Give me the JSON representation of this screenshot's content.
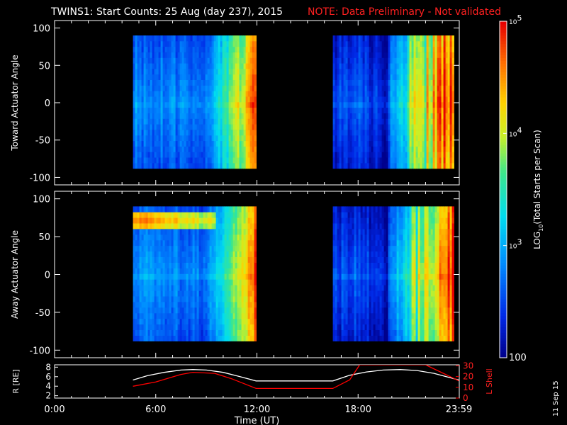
{
  "header": {
    "title": "TWINS1: Start Counts: 25 Aug (day 237), 2015",
    "note": "NOTE: Data Preliminary - Not validated",
    "note_color": "#ff0000"
  },
  "footer": {
    "date_stamp": "11 Sep 15"
  },
  "chart_data": [
    {
      "type": "heatmap",
      "panel": "toward",
      "ylabel": "Toward Actuator Angle",
      "ylim": [
        -110,
        110
      ],
      "yticks": [
        "100",
        "50",
        "0",
        "-50",
        "-100"
      ],
      "ytick_values": [
        100,
        50,
        0,
        -50,
        -100
      ],
      "xlim": [
        0,
        24
      ],
      "data_segments_hours": [
        [
          4.65,
          11.95
        ],
        [
          16.5,
          23.7
        ]
      ],
      "angle_range": [
        -88,
        90
      ]
    },
    {
      "type": "heatmap",
      "panel": "away",
      "ylabel": "Away Actuator Angle",
      "ylim": [
        -110,
        110
      ],
      "yticks": [
        "100",
        "50",
        "0",
        "-50",
        "-100"
      ],
      "ytick_values": [
        100,
        50,
        0,
        -50,
        -100
      ],
      "xlim": [
        0,
        24
      ],
      "data_segments_hours": [
        [
          4.65,
          11.95
        ],
        [
          16.5,
          23.7
        ]
      ],
      "angle_range": [
        -88,
        90
      ],
      "bright_band_angle": 72
    },
    {
      "type": "line",
      "panel": "orbit",
      "ylabel_left": "R [RE]",
      "ylabel_right": "L Shell",
      "yticks_left": [
        "8",
        "6",
        "4",
        "2"
      ],
      "yticks_left_values": [
        8,
        6,
        4,
        2
      ],
      "ylim_left": [
        1.5,
        8.5
      ],
      "yticks_right": [
        "30",
        "20",
        "10",
        "0"
      ],
      "yticks_right_values": [
        30,
        20,
        10,
        0
      ],
      "ylim_right": [
        0,
        31
      ],
      "xlim": [
        0,
        24
      ],
      "xlabel": "Time (UT)",
      "xticks": [
        "0:00",
        "6:00",
        "12:00",
        "18:00",
        "23:59"
      ],
      "xtick_values": [
        0,
        6,
        12,
        18,
        23.98
      ],
      "series": [
        {
          "color": "#ffffff",
          "axis": "left",
          "x": [
            4.65,
            5.5,
            6.5,
            7.5,
            8.2,
            9.0,
            10.0,
            11.0,
            11.95,
            16.5,
            17.5,
            18.5,
            19.5,
            20.5,
            21.5,
            22.5,
            23.98
          ],
          "y": [
            5.3,
            6.2,
            6.9,
            7.4,
            7.5,
            7.4,
            6.9,
            6.0,
            5.1,
            5.1,
            6.3,
            7.0,
            7.4,
            7.5,
            7.3,
            6.7,
            5.3
          ]
        },
        {
          "color": "#ff0000",
          "axis": "right",
          "x": [
            4.65,
            6.0,
            7.5,
            8.2,
            9.5,
            10.5,
            11.95,
            16.5,
            17.5,
            18.1,
            22.0,
            23.98
          ],
          "y": [
            11,
            15,
            22,
            24,
            23,
            18,
            9,
            9,
            17,
            31,
            31,
            16
          ]
        }
      ]
    }
  ],
  "colorbar": {
    "label": "LOG10(Total Starts per Scan)",
    "label_prefix": "LOG",
    "label_sub": "10",
    "label_suffix": "(Total Starts per Scan)",
    "ticks": [
      {
        "base": "10",
        "exp": "5",
        "value": 5
      },
      {
        "base": "10",
        "exp": "4",
        "value": 4
      },
      {
        "base": "10",
        "exp": "3",
        "value": 3
      },
      {
        "base": "100",
        "exp": "",
        "value": 2
      }
    ],
    "range": [
      2,
      5
    ]
  }
}
